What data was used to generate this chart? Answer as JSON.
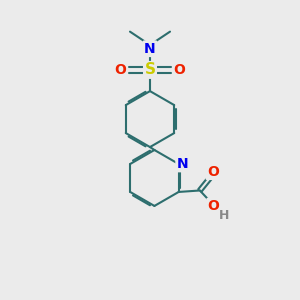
{
  "bg_color": "#ebebeb",
  "bond_color": "#2d6e6e",
  "bond_width": 1.5,
  "atom_colors": {
    "N": "#0000ee",
    "S": "#cccc00",
    "O": "#ee2200",
    "H": "#888888"
  },
  "font_size_heavy": 10,
  "font_size_H": 9,
  "dbo": 0.055
}
